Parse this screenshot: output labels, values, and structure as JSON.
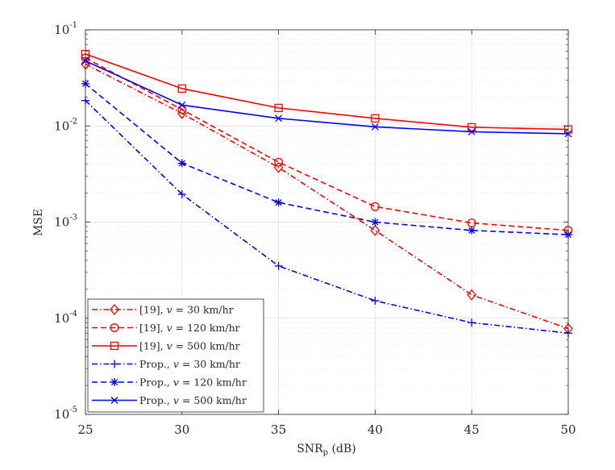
{
  "chart_data": {
    "type": "line",
    "title": "",
    "xlabel": "SNR",
    "xlabel_sub": "p",
    "xlabel_suffix": " (dB)",
    "ylabel": "MSE",
    "yscale": "log",
    "xlim": [
      25,
      50
    ],
    "ylim": [
      1e-05,
      0.1
    ],
    "grid": true,
    "minor_grid": true,
    "legend_position": "bottom-left",
    "x": [
      25,
      30,
      35,
      40,
      45,
      50
    ],
    "x_ticks": [
      "25",
      "30",
      "35",
      "40",
      "45",
      "50"
    ],
    "y_ticks": [
      {
        "value": 0.1,
        "base": "10",
        "exp": "-1"
      },
      {
        "value": 0.01,
        "base": "10",
        "exp": "-2"
      },
      {
        "value": 0.001,
        "base": "10",
        "exp": "-3"
      },
      {
        "value": 0.0001,
        "base": "10",
        "exp": "-4"
      },
      {
        "value": 1e-05,
        "base": "10",
        "exp": "-5"
      }
    ],
    "series": [
      {
        "name": "[19], v = 30 km/hr",
        "label_prefix": "[19], ",
        "label_var": "v",
        "label_suffix": " = 30 km/hr",
        "color": "#ff0000",
        "dash": "dashdot",
        "marker": "diamond",
        "values": [
          0.044,
          0.0135,
          0.0037,
          0.00082,
          0.000175,
          7.8e-05
        ]
      },
      {
        "name": "[19], v = 120 km/hr",
        "label_prefix": "[19], ",
        "label_var": "v",
        "label_suffix": " = 120 km/hr",
        "color": "#ff0000",
        "dash": "dashed",
        "marker": "circle",
        "values": [
          0.051,
          0.0148,
          0.0042,
          0.00145,
          0.00098,
          0.00082
        ]
      },
      {
        "name": "[19], v = 500 km/hr",
        "label_prefix": "[19], ",
        "label_var": "v",
        "label_suffix": " = 500 km/hr",
        "color": "#ff0000",
        "dash": "solid",
        "marker": "square",
        "values": [
          0.056,
          0.0245,
          0.0154,
          0.012,
          0.0097,
          0.0092
        ]
      },
      {
        "name": "Prop., v = 30 km/hr",
        "label_prefix": "Prop., ",
        "label_var": "v",
        "label_suffix": " = 30 km/hr",
        "color": "#0000ff",
        "dash": "dashdot",
        "marker": "plus",
        "values": [
          0.0184,
          0.00195,
          0.00035,
          0.000152,
          9e-05,
          7e-05
        ]
      },
      {
        "name": "Prop., v = 120 km/hr",
        "label_prefix": "Prop., ",
        "label_var": "v",
        "label_suffix": " = 120 km/hr",
        "color": "#0000ff",
        "dash": "dashed",
        "marker": "asterisk",
        "values": [
          0.0275,
          0.0041,
          0.0016,
          0.001,
          0.00082,
          0.00074
        ]
      },
      {
        "name": "Prop., v = 500 km/hr",
        "label_prefix": "Prop., ",
        "label_var": "v",
        "label_suffix": " = 500 km/hr",
        "color": "#0000ff",
        "dash": "solid",
        "marker": "cross",
        "values": [
          0.0475,
          0.0165,
          0.012,
          0.0098,
          0.0087,
          0.0083
        ]
      }
    ]
  }
}
